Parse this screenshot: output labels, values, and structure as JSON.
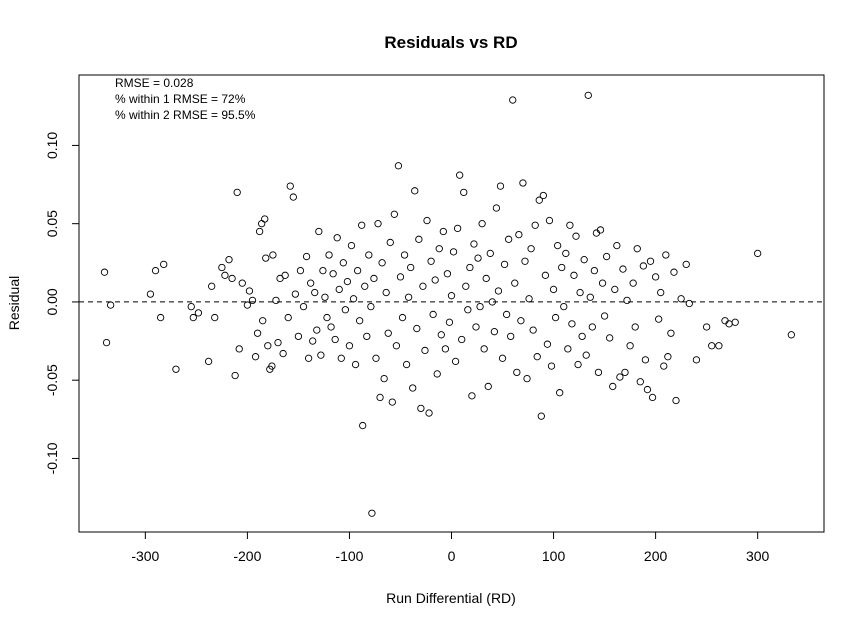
{
  "chart_data": {
    "type": "scatter",
    "title": "Residuals vs RD",
    "xlabel": "Run Differential (RD)",
    "ylabel": "Residual",
    "xlim": [
      -365,
      365
    ],
    "ylim": [
      -0.147,
      0.145
    ],
    "x_ticks": [
      -300,
      -200,
      -100,
      0,
      100,
      200,
      300
    ],
    "x_tick_labels": [
      "-300",
      "-200",
      "-100",
      "0",
      "100",
      "200",
      "300"
    ],
    "y_ticks": [
      -0.1,
      -0.05,
      0.0,
      0.05,
      0.1
    ],
    "y_tick_labels": [
      "-0.10",
      "-0.05",
      "0.00",
      "0.05",
      "0.10"
    ],
    "reference_line": {
      "y": 0,
      "style": "dashed"
    },
    "annotations": [
      "RMSE = 0.028",
      "% within 1 RMSE = 72%",
      "% within 2 RMSE = 95.5%"
    ],
    "grid": false,
    "marker": "open-circle",
    "points": [
      [
        -340,
        0.019
      ],
      [
        -338,
        -0.026
      ],
      [
        -334,
        -0.002
      ],
      [
        -295,
        0.005
      ],
      [
        -290,
        0.02
      ],
      [
        -285,
        -0.01
      ],
      [
        -282,
        0.024
      ],
      [
        -270,
        -0.043
      ],
      [
        -255,
        -0.003
      ],
      [
        -253,
        -0.01
      ],
      [
        -248,
        -0.007
      ],
      [
        -238,
        -0.038
      ],
      [
        -235,
        0.01
      ],
      [
        -232,
        -0.01
      ],
      [
        -225,
        0.022
      ],
      [
        -222,
        0.017
      ],
      [
        -218,
        0.027
      ],
      [
        -215,
        0.015
      ],
      [
        -212,
        -0.047
      ],
      [
        -210,
        0.07
      ],
      [
        -208,
        -0.03
      ],
      [
        -205,
        0.012
      ],
      [
        -200,
        -0.002
      ],
      [
        -198,
        0.007
      ],
      [
        -195,
        0.001
      ],
      [
        -192,
        -0.035
      ],
      [
        -190,
        -0.02
      ],
      [
        -188,
        0.045
      ],
      [
        -186,
        0.05
      ],
      [
        -185,
        -0.012
      ],
      [
        -183,
        0.053
      ],
      [
        -182,
        0.028
      ],
      [
        -180,
        -0.028
      ],
      [
        -178,
        -0.043
      ],
      [
        -176,
        -0.041
      ],
      [
        -175,
        0.03
      ],
      [
        -172,
        0.001
      ],
      [
        -170,
        -0.026
      ],
      [
        -168,
        0.015
      ],
      [
        -165,
        -0.033
      ],
      [
        -163,
        0.017
      ],
      [
        -160,
        -0.01
      ],
      [
        -158,
        0.074
      ],
      [
        -155,
        0.067
      ],
      [
        -153,
        0.005
      ],
      [
        -150,
        -0.022
      ],
      [
        -148,
        0.02
      ],
      [
        -145,
        -0.003
      ],
      [
        -142,
        0.029
      ],
      [
        -140,
        -0.036
      ],
      [
        -138,
        0.012
      ],
      [
        -136,
        -0.025
      ],
      [
        -134,
        0.006
      ],
      [
        -132,
        -0.018
      ],
      [
        -130,
        0.045
      ],
      [
        -128,
        -0.034
      ],
      [
        -126,
        0.02
      ],
      [
        -124,
        0.003
      ],
      [
        -122,
        -0.01
      ],
      [
        -120,
        0.03
      ],
      [
        -118,
        -0.016
      ],
      [
        -116,
        0.018
      ],
      [
        -114,
        -0.024
      ],
      [
        -112,
        0.041
      ],
      [
        -110,
        0.008
      ],
      [
        -108,
        -0.036
      ],
      [
        -106,
        0.025
      ],
      [
        -104,
        -0.005
      ],
      [
        -102,
        0.013
      ],
      [
        -100,
        -0.028
      ],
      [
        -98,
        0.036
      ],
      [
        -96,
        0.002
      ],
      [
        -94,
        -0.04
      ],
      [
        -92,
        0.02
      ],
      [
        -90,
        -0.012
      ],
      [
        -88,
        0.049
      ],
      [
        -87,
        -0.079
      ],
      [
        -85,
        0.01
      ],
      [
        -83,
        -0.022
      ],
      [
        -81,
        0.03
      ],
      [
        -79,
        -0.003
      ],
      [
        -78,
        -0.135
      ],
      [
        -76,
        0.015
      ],
      [
        -74,
        -0.036
      ],
      [
        -72,
        0.05
      ],
      [
        -70,
        -0.061
      ],
      [
        -68,
        0.025
      ],
      [
        -66,
        -0.049
      ],
      [
        -64,
        0.006
      ],
      [
        -62,
        -0.02
      ],
      [
        -60,
        0.038
      ],
      [
        -58,
        -0.064
      ],
      [
        -56,
        0.056
      ],
      [
        -54,
        -0.028
      ],
      [
        -52,
        0.087
      ],
      [
        -50,
        0.016
      ],
      [
        -48,
        -0.01
      ],
      [
        -46,
        0.03
      ],
      [
        -44,
        -0.04
      ],
      [
        -42,
        0.003
      ],
      [
        -40,
        0.022
      ],
      [
        -38,
        -0.055
      ],
      [
        -36,
        0.071
      ],
      [
        -34,
        -0.017
      ],
      [
        -32,
        0.04
      ],
      [
        -30,
        -0.068
      ],
      [
        -28,
        0.01
      ],
      [
        -26,
        -0.031
      ],
      [
        -24,
        0.052
      ],
      [
        -22,
        -0.071
      ],
      [
        -20,
        0.026
      ],
      [
        -18,
        -0.008
      ],
      [
        -16,
        0.014
      ],
      [
        -14,
        -0.046
      ],
      [
        -12,
        0.034
      ],
      [
        -10,
        -0.021
      ],
      [
        -8,
        0.045
      ],
      [
        -6,
        -0.03
      ],
      [
        -4,
        0.018
      ],
      [
        -2,
        -0.013
      ],
      [
        0,
        0.004
      ],
      [
        2,
        0.032
      ],
      [
        4,
        -0.038
      ],
      [
        6,
        0.047
      ],
      [
        8,
        0.081
      ],
      [
        10,
        -0.024
      ],
      [
        12,
        0.07
      ],
      [
        14,
        0.01
      ],
      [
        16,
        -0.005
      ],
      [
        18,
        0.022
      ],
      [
        20,
        -0.06
      ],
      [
        22,
        0.037
      ],
      [
        24,
        -0.016
      ],
      [
        26,
        0.028
      ],
      [
        28,
        -0.003
      ],
      [
        30,
        0.05
      ],
      [
        32,
        -0.03
      ],
      [
        34,
        0.015
      ],
      [
        36,
        -0.054
      ],
      [
        38,
        0.031
      ],
      [
        40,
        0.0
      ],
      [
        42,
        -0.019
      ],
      [
        44,
        0.06
      ],
      [
        46,
        0.007
      ],
      [
        48,
        0.074
      ],
      [
        50,
        -0.036
      ],
      [
        52,
        0.024
      ],
      [
        54,
        -0.008
      ],
      [
        56,
        0.04
      ],
      [
        58,
        -0.022
      ],
      [
        60,
        0.129
      ],
      [
        62,
        0.012
      ],
      [
        64,
        -0.045
      ],
      [
        66,
        0.043
      ],
      [
        68,
        -0.012
      ],
      [
        70,
        0.076
      ],
      [
        72,
        0.026
      ],
      [
        74,
        -0.049
      ],
      [
        76,
        0.002
      ],
      [
        78,
        0.034
      ],
      [
        80,
        -0.018
      ],
      [
        82,
        0.049
      ],
      [
        84,
        -0.035
      ],
      [
        86,
        0.065
      ],
      [
        88,
        -0.073
      ],
      [
        90,
        0.068
      ],
      [
        92,
        0.017
      ],
      [
        94,
        -0.027
      ],
      [
        96,
        0.052
      ],
      [
        98,
        -0.041
      ],
      [
        100,
        0.008
      ],
      [
        102,
        -0.01
      ],
      [
        104,
        0.036
      ],
      [
        106,
        -0.058
      ],
      [
        108,
        0.022
      ],
      [
        110,
        -0.003
      ],
      [
        112,
        0.031
      ],
      [
        114,
        -0.03
      ],
      [
        116,
        0.049
      ],
      [
        118,
        -0.014
      ],
      [
        120,
        0.017
      ],
      [
        122,
        0.042
      ],
      [
        124,
        -0.04
      ],
      [
        126,
        0.006
      ],
      [
        128,
        -0.022
      ],
      [
        130,
        0.027
      ],
      [
        132,
        -0.034
      ],
      [
        134,
        0.132
      ],
      [
        136,
        0.003
      ],
      [
        138,
        -0.016
      ],
      [
        140,
        0.02
      ],
      [
        142,
        0.044
      ],
      [
        144,
        -0.045
      ],
      [
        146,
        0.046
      ],
      [
        148,
        0.012
      ],
      [
        150,
        -0.009
      ],
      [
        152,
        0.029
      ],
      [
        155,
        -0.023
      ],
      [
        158,
        -0.054
      ],
      [
        160,
        0.008
      ],
      [
        162,
        0.036
      ],
      [
        165,
        -0.048
      ],
      [
        168,
        0.021
      ],
      [
        170,
        -0.045
      ],
      [
        172,
        0.001
      ],
      [
        175,
        -0.028
      ],
      [
        178,
        0.012
      ],
      [
        180,
        -0.016
      ],
      [
        182,
        0.034
      ],
      [
        185,
        -0.051
      ],
      [
        188,
        0.023
      ],
      [
        190,
        -0.037
      ],
      [
        192,
        -0.056
      ],
      [
        195,
        0.026
      ],
      [
        197,
        -0.061
      ],
      [
        200,
        0.016
      ],
      [
        203,
        -0.011
      ],
      [
        205,
        0.006
      ],
      [
        208,
        -0.041
      ],
      [
        210,
        0.03
      ],
      [
        212,
        -0.035
      ],
      [
        215,
        -0.02
      ],
      [
        218,
        0.019
      ],
      [
        220,
        -0.063
      ],
      [
        225,
        0.002
      ],
      [
        230,
        0.024
      ],
      [
        233,
        -0.001
      ],
      [
        240,
        -0.037
      ],
      [
        250,
        -0.016
      ],
      [
        255,
        -0.028
      ],
      [
        262,
        -0.028
      ],
      [
        268,
        -0.012
      ],
      [
        272,
        -0.014
      ],
      [
        278,
        -0.013
      ],
      [
        300,
        0.031
      ],
      [
        333,
        -0.021
      ]
    ]
  }
}
